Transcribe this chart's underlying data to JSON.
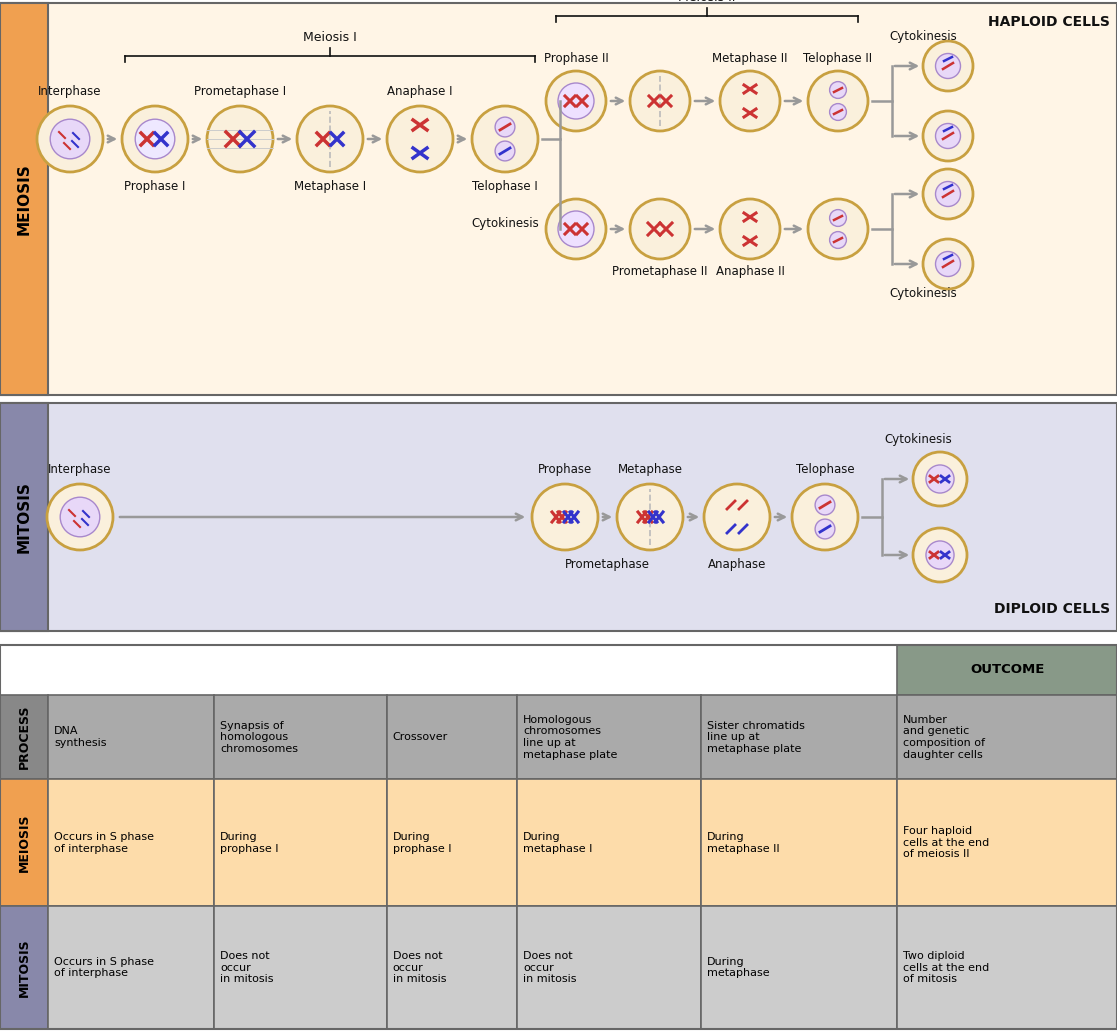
{
  "fig_width": 11.17,
  "fig_height": 10.31,
  "dpi": 100,
  "meiosis_bg": "#FFF5E6",
  "meiosis_label_bg": "#F0A050",
  "mitosis_bg": "#E0E0EE",
  "mitosis_label_bg": "#8888AA",
  "haploid_label": "HAPLOID CELLS",
  "diploid_label": "DIPLOID CELLS",
  "meiosis_label": "MEIOSIS",
  "mitosis_label": "MITOSIS",
  "table_process_bg": "#AAAAAA",
  "table_meiosis_bg": "#FDDCAA",
  "table_mitosis_bg": "#CCCCCC",
  "table_label_meiosis_bg": "#F0A050",
  "table_label_mitosis_bg": "#8888AA",
  "table_label_process_bg": "#888888",
  "table_outcome_bg": "#889988",
  "outcome_label": "OUTCOME",
  "process_label": "PROCESS",
  "table_columns": [
    "DNA\nsynthesis",
    "Synapsis of\nhomologous\nchromosomes",
    "Crossover",
    "Homologous\nchromosomes\nline up at\nmetaphase plate",
    "Sister chromatids\nline up at\nmetaphase plate",
    "Number\nand genetic\ncomposition of\ndaughter cells"
  ],
  "table_meiosis_row": [
    "Occurs in S phase\nof interphase",
    "During\nprophase I",
    "During\nprophase I",
    "During\nmetaphase I",
    "During\nmetaphase II",
    "Four haploid\ncells at the end\nof meiosis II"
  ],
  "table_mitosis_row": [
    "Occurs in S phase\nof interphase",
    "Does not\noccur\nin mitosis",
    "Does not\noccur\nin mitosis",
    "Does not\noccur\nin mitosis",
    "During\nmetaphase",
    "Two diploid\ncells at the end\nof mitosis"
  ],
  "border_color": "#666666",
  "text_color": "#111111"
}
